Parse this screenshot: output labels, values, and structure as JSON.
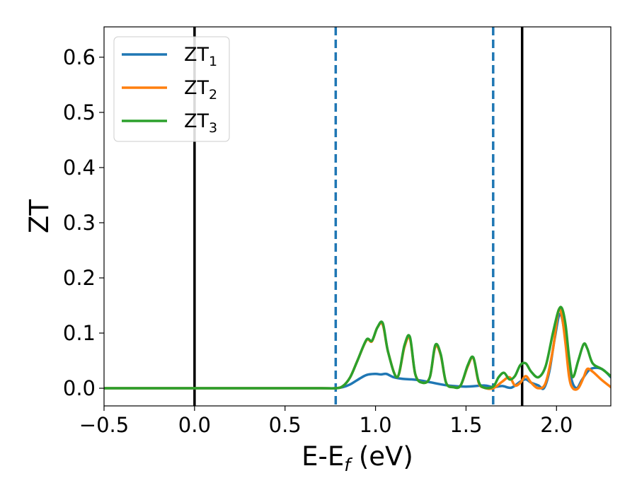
{
  "chart_data": {
    "type": "line",
    "xlabel": {
      "main": "E-E",
      "sub": "f",
      "suffix": " (eV)"
    },
    "ylabel": "ZT",
    "xlim": [
      -0.5,
      2.3
    ],
    "ylim": [
      -0.032,
      0.655
    ],
    "xticks": [
      -0.5,
      0.0,
      0.5,
      1.0,
      1.5,
      2.0
    ],
    "xtick_labels": [
      "−0.5",
      "0.0",
      "0.5",
      "1.0",
      "1.5",
      "2.0"
    ],
    "yticks": [
      0.0,
      0.1,
      0.2,
      0.3,
      0.4,
      0.5,
      0.6
    ],
    "ytick_labels": [
      "0.0",
      "0.1",
      "0.2",
      "0.3",
      "0.4",
      "0.5",
      "0.6"
    ],
    "grid": false,
    "legend_position": "top-left",
    "vlines": [
      {
        "x": 0.0,
        "style": "solid",
        "color": "#000000"
      },
      {
        "x": 0.78,
        "style": "dashed",
        "color": "#1f77b4"
      },
      {
        "x": 1.65,
        "style": "dashed",
        "color": "#1f77b4"
      },
      {
        "x": 1.81,
        "style": "solid",
        "color": "#000000"
      }
    ],
    "series": [
      {
        "name": "ZT",
        "subscript": "1",
        "color": "#1f77b4",
        "x": [
          -0.5,
          0.0,
          0.5,
          0.7,
          0.78,
          0.82,
          0.86,
          0.9,
          0.95,
          1.0,
          1.03,
          1.06,
          1.1,
          1.15,
          1.2,
          1.25,
          1.3,
          1.4,
          1.5,
          1.6,
          1.65,
          1.7,
          1.75,
          1.8,
          1.83,
          1.86,
          1.9,
          1.93,
          1.96,
          1.99,
          2.02,
          2.05,
          2.08,
          2.11,
          2.14,
          2.18,
          2.22,
          2.26,
          2.3
        ],
        "y": [
          0.0,
          0.0,
          0.0,
          0.0,
          0.0,
          0.002,
          0.007,
          0.015,
          0.024,
          0.026,
          0.025,
          0.026,
          0.02,
          0.017,
          0.016,
          0.014,
          0.011,
          0.005,
          0.003,
          0.005,
          0.002,
          0.004,
          0.001,
          0.012,
          0.016,
          0.01,
          0.005,
          0.0,
          0.03,
          0.09,
          0.135,
          0.09,
          0.02,
          0.0,
          0.015,
          0.033,
          0.037,
          0.033,
          0.02
        ]
      },
      {
        "name": "ZT",
        "subscript": "2",
        "color": "#ff7f0e",
        "x": [
          -0.5,
          0.0,
          0.5,
          0.7,
          0.78,
          0.82,
          0.86,
          0.9,
          0.95,
          0.98,
          1.01,
          1.04,
          1.07,
          1.12,
          1.16,
          1.19,
          1.22,
          1.26,
          1.3,
          1.33,
          1.36,
          1.39,
          1.43,
          1.47,
          1.51,
          1.54,
          1.57,
          1.6,
          1.65,
          1.7,
          1.74,
          1.77,
          1.8,
          1.83,
          1.86,
          1.9,
          1.94,
          1.98,
          2.01,
          2.03,
          2.05,
          2.07,
          2.09,
          2.12,
          2.15,
          2.17,
          2.2,
          2.25,
          2.3
        ],
        "y": [
          0.0,
          0.0,
          0.0,
          0.0,
          0.0,
          0.004,
          0.02,
          0.05,
          0.087,
          0.085,
          0.11,
          0.115,
          0.065,
          0.02,
          0.075,
          0.09,
          0.025,
          0.01,
          0.02,
          0.075,
          0.06,
          0.01,
          0.002,
          0.005,
          0.04,
          0.055,
          0.01,
          0.001,
          0.0,
          0.012,
          0.02,
          0.005,
          0.01,
          0.022,
          0.01,
          0.0,
          0.01,
          0.07,
          0.14,
          0.13,
          0.08,
          0.02,
          0.0,
          0.0,
          0.02,
          0.035,
          0.03,
          0.015,
          0.002
        ]
      },
      {
        "name": "ZT",
        "subscript": "3",
        "color": "#2ca02c",
        "x": [
          -0.5,
          0.0,
          0.5,
          0.7,
          0.78,
          0.82,
          0.86,
          0.9,
          0.95,
          0.98,
          1.01,
          1.04,
          1.07,
          1.12,
          1.16,
          1.19,
          1.22,
          1.26,
          1.3,
          1.33,
          1.36,
          1.39,
          1.43,
          1.47,
          1.51,
          1.54,
          1.57,
          1.6,
          1.65,
          1.68,
          1.71,
          1.74,
          1.77,
          1.8,
          1.83,
          1.86,
          1.9,
          1.94,
          1.98,
          2.01,
          2.03,
          2.05,
          2.07,
          2.09,
          2.12,
          2.15,
          2.17,
          2.2,
          2.25,
          2.3
        ],
        "y": [
          0.0,
          0.0,
          0.0,
          0.0,
          0.0,
          0.004,
          0.02,
          0.05,
          0.088,
          0.086,
          0.11,
          0.118,
          0.065,
          0.02,
          0.078,
          0.093,
          0.025,
          0.01,
          0.02,
          0.078,
          0.062,
          0.01,
          0.002,
          0.005,
          0.042,
          0.056,
          0.012,
          0.001,
          0.003,
          0.02,
          0.028,
          0.016,
          0.022,
          0.042,
          0.045,
          0.03,
          0.02,
          0.04,
          0.1,
          0.14,
          0.145,
          0.115,
          0.055,
          0.02,
          0.05,
          0.08,
          0.072,
          0.045,
          0.035,
          0.022
        ]
      }
    ]
  }
}
